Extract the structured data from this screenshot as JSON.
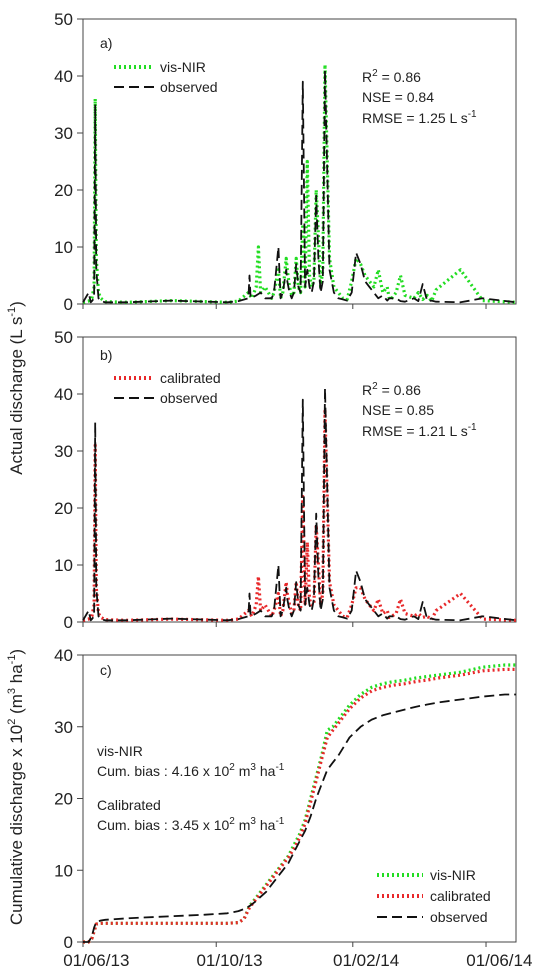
{
  "y_label_top": "Actual discharge (L s-1)",
  "y_label_top_parts": {
    "main": "Actual discharge (L s",
    "sup": "-1",
    "end": ")"
  },
  "y_label_bottom_parts": {
    "main": "Cumulative discharge x 10",
    "sup1": "2",
    "mid": " (m",
    "sup2": "3",
    "mid2": " ha",
    "sup3": "-1",
    "end": ")"
  },
  "x_tick_labels": [
    "01/06/13",
    "01/10/13",
    "01/02/14",
    "01/06/14"
  ],
  "colors": {
    "vis_nir": "#22dd22",
    "calibrated": "#e8282a",
    "observed": "#111111"
  },
  "chart_data": [
    {
      "type": "line",
      "panel_label": "a)",
      "ylim": [
        0,
        50
      ],
      "yticks": [
        0,
        10,
        20,
        30,
        40,
        50
      ],
      "xlim": [
        0,
        390
      ],
      "legend": [
        "vis-NIR",
        "observed"
      ],
      "stats": {
        "r2": "R",
        "r2_sup": "2",
        "r2_val": " = 0.86",
        "nse": "NSE = 0.84",
        "rmse": "RMSE = 1.25 L s",
        "rmse_sup": "-1"
      },
      "series": [
        {
          "name": "vis-NIR",
          "x": [
            0,
            5,
            8,
            10,
            11,
            12,
            14,
            16,
            20,
            40,
            80,
            130,
            140,
            149,
            152,
            156,
            158,
            160,
            164,
            170,
            172,
            176,
            178,
            180,
            183,
            184,
            186,
            188,
            190,
            192,
            194,
            196,
            198,
            200,
            202,
            204,
            206,
            208,
            210,
            212,
            214,
            216,
            218,
            222,
            226,
            230,
            234,
            238,
            242,
            246,
            250,
            254,
            258,
            262,
            266,
            270,
            274,
            276,
            278,
            282,
            286,
            290,
            298,
            302,
            306,
            310,
            314,
            318,
            340,
            360,
            390
          ],
          "y": [
            0.3,
            0.5,
            1,
            3,
            36,
            8,
            2,
            1,
            0.4,
            0.3,
            0.6,
            0.3,
            0.5,
            2,
            1,
            3,
            10,
            2,
            3,
            1,
            2,
            6,
            1,
            2,
            8,
            6,
            3,
            1.5,
            2,
            8,
            3,
            2,
            14,
            3,
            25,
            5,
            3,
            4,
            20,
            12,
            3,
            6,
            42,
            8,
            3,
            2,
            1,
            0.8,
            4,
            8,
            7,
            5,
            4,
            3,
            6,
            2,
            3,
            0.8,
            1,
            2,
            5,
            1.5,
            1,
            2,
            0.8,
            1.5,
            0.5,
            2.5,
            6,
            0.6,
            0.3
          ]
        },
        {
          "name": "observed",
          "x": [
            0,
            5,
            7,
            8,
            10,
            11,
            12,
            14,
            16,
            20,
            40,
            80,
            130,
            140,
            149,
            150,
            151,
            156,
            160,
            164,
            170,
            172,
            176,
            178,
            180,
            183,
            184,
            186,
            188,
            190,
            192,
            194,
            196,
            198,
            200,
            202,
            204,
            206,
            208,
            210,
            212,
            214,
            216,
            218,
            222,
            226,
            230,
            234,
            238,
            242,
            246,
            250,
            254,
            258,
            262,
            266,
            270,
            274,
            276,
            278,
            282,
            286,
            290,
            298,
            302,
            306,
            310,
            314,
            318,
            340,
            360,
            390
          ],
          "y": [
            0.3,
            2,
            0.3,
            0.5,
            1,
            35,
            6,
            1,
            0.5,
            0.3,
            0.3,
            0.6,
            0.3,
            0.5,
            1,
            5,
            1,
            1.5,
            2,
            1,
            1,
            2,
            10,
            1,
            2,
            6,
            4,
            2,
            1,
            2,
            7,
            3,
            2,
            39,
            3,
            6,
            3,
            2,
            4,
            19,
            8,
            2,
            4,
            41,
            6,
            2,
            1,
            0.8,
            0.6,
            2,
            9,
            7,
            4,
            3,
            2,
            1,
            1.5,
            0.6,
            1,
            1,
            1,
            0.5,
            0.4,
            1,
            0.5,
            3.5,
            0.5,
            0.6,
            0.4,
            0.3,
            1,
            0.3
          ]
        }
      ]
    },
    {
      "type": "line",
      "panel_label": "b)",
      "ylim": [
        0,
        50
      ],
      "yticks": [
        0,
        10,
        20,
        30,
        40,
        50
      ],
      "xlim": [
        0,
        390
      ],
      "legend": [
        "calibrated",
        "observed"
      ],
      "stats": {
        "r2": "R",
        "r2_sup": "2",
        "r2_val": " = 0.86",
        "nse": "NSE = 0.85",
        "rmse": "RMSE = 1.21 L s",
        "rmse_sup": "-1"
      },
      "series": [
        {
          "name": "calibrated",
          "x": [
            0,
            5,
            8,
            10,
            11,
            12,
            14,
            16,
            20,
            40,
            80,
            130,
            140,
            149,
            152,
            156,
            158,
            160,
            164,
            170,
            172,
            176,
            178,
            180,
            183,
            184,
            186,
            188,
            190,
            192,
            194,
            196,
            198,
            200,
            202,
            204,
            206,
            208,
            210,
            212,
            214,
            216,
            218,
            222,
            226,
            230,
            234,
            238,
            242,
            246,
            250,
            254,
            258,
            262,
            266,
            270,
            274,
            276,
            278,
            282,
            286,
            290,
            298,
            302,
            306,
            310,
            314,
            318,
            340,
            360,
            390
          ],
          "y": [
            0.3,
            0.5,
            1,
            3,
            31,
            6,
            1.5,
            0.8,
            0.4,
            0.3,
            0.5,
            0.3,
            0.5,
            2,
            1,
            3,
            8,
            2,
            3,
            1,
            2,
            5,
            1,
            2,
            7,
            5,
            3,
            1.5,
            2,
            7,
            3,
            2,
            22,
            3,
            14,
            4,
            3,
            3,
            17,
            10,
            3,
            5,
            37,
            7,
            3,
            2,
            1,
            0.8,
            3,
            6,
            6,
            4,
            3,
            2,
            4,
            1.5,
            2,
            0.8,
            1,
            1.5,
            4,
            1.5,
            1,
            1.5,
            0.8,
            1,
            0.4,
            2,
            5,
            0.5,
            0.3
          ]
        },
        {
          "name": "observed",
          "x": [
            0,
            5,
            7,
            8,
            10,
            11,
            12,
            14,
            16,
            20,
            40,
            80,
            130,
            140,
            149,
            150,
            151,
            156,
            160,
            164,
            170,
            172,
            176,
            178,
            180,
            183,
            184,
            186,
            188,
            190,
            192,
            194,
            196,
            198,
            200,
            202,
            204,
            206,
            208,
            210,
            212,
            214,
            216,
            218,
            222,
            226,
            230,
            234,
            238,
            242,
            246,
            250,
            254,
            258,
            262,
            266,
            270,
            274,
            276,
            278,
            282,
            286,
            290,
            298,
            302,
            306,
            310,
            314,
            318,
            340,
            360,
            390
          ],
          "y": [
            0.3,
            2,
            0.3,
            0.5,
            1,
            35,
            6,
            1,
            0.5,
            0.3,
            0.3,
            0.6,
            0.3,
            0.5,
            1,
            5,
            1,
            1.5,
            2,
            1,
            1,
            2,
            10,
            1,
            2,
            6,
            4,
            2,
            1,
            2,
            7,
            3,
            2,
            39,
            3,
            6,
            3,
            2,
            4,
            19,
            8,
            2,
            4,
            41,
            6,
            2,
            1,
            0.8,
            0.6,
            2,
            9,
            7,
            4,
            3,
            2,
            1,
            1.5,
            0.6,
            1,
            1,
            1,
            0.5,
            0.4,
            1,
            0.5,
            3.5,
            0.5,
            0.6,
            0.4,
            0.3,
            1,
            0.3
          ]
        }
      ]
    },
    {
      "type": "line",
      "panel_label": "c)",
      "ylim": [
        0,
        40
      ],
      "yticks": [
        0,
        10,
        20,
        30,
        40
      ],
      "xlim": [
        0,
        390
      ],
      "legend": [
        "vis-NIR",
        "calibrated",
        "observed"
      ],
      "annotations": [
        {
          "title": "vis-NIR",
          "pre": "Cum. bias : 4.16 x 10",
          "sup1": "2",
          "mid": " m",
          "sup2": "3",
          "mid2": " ha",
          "sup3": "-1"
        },
        {
          "title": "Calibrated",
          "pre": "Cum. bias : 3.45 x 10",
          "sup1": "2",
          "mid": " m",
          "sup2": "3",
          "mid2": " ha",
          "sup3": "-1"
        }
      ],
      "series": [
        {
          "name": "vis-NIR",
          "x": [
            0,
            5,
            8,
            10,
            12,
            16,
            20,
            40,
            80,
            110,
            130,
            140,
            145,
            150,
            155,
            160,
            165,
            170,
            175,
            180,
            185,
            190,
            195,
            200,
            205,
            210,
            215,
            220,
            225,
            230,
            240,
            250,
            260,
            270,
            280,
            290,
            300,
            310,
            320,
            340,
            360,
            380,
            390
          ],
          "y": [
            0,
            0,
            0.5,
            1.5,
            2.5,
            2.6,
            2.6,
            2.6,
            2.6,
            2.6,
            2.6,
            2.7,
            3.2,
            5,
            6,
            7,
            8,
            9,
            10,
            11,
            12,
            13.5,
            15,
            17,
            20,
            23,
            26,
            29.5,
            30,
            31,
            33,
            34.5,
            35.5,
            36,
            36.3,
            36.5,
            36.8,
            37,
            37.2,
            37.6,
            38.3,
            38.6,
            38.6
          ]
        },
        {
          "name": "calibrated",
          "x": [
            0,
            5,
            8,
            10,
            12,
            16,
            20,
            40,
            80,
            110,
            130,
            140,
            145,
            150,
            155,
            160,
            165,
            170,
            175,
            180,
            185,
            190,
            195,
            200,
            205,
            210,
            215,
            220,
            225,
            230,
            240,
            250,
            260,
            270,
            280,
            290,
            300,
            310,
            320,
            340,
            360,
            380,
            390
          ],
          "y": [
            0,
            0,
            0.5,
            1.5,
            2.5,
            2.6,
            2.6,
            2.6,
            2.6,
            2.6,
            2.6,
            2.7,
            3.2,
            4.8,
            5.8,
            6.8,
            7.8,
            8.8,
            9.8,
            10.8,
            11.8,
            13,
            14.5,
            16.5,
            19.5,
            22.5,
            25.5,
            28.5,
            29.5,
            30.5,
            32.5,
            34,
            35,
            35.5,
            35.8,
            36,
            36.3,
            36.5,
            36.8,
            37.2,
            37.8,
            38,
            38
          ]
        },
        {
          "name": "observed",
          "x": [
            0,
            5,
            8,
            10,
            12,
            16,
            20,
            40,
            80,
            110,
            130,
            140,
            145,
            150,
            155,
            160,
            165,
            170,
            175,
            180,
            185,
            190,
            195,
            200,
            205,
            210,
            215,
            220,
            225,
            230,
            240,
            250,
            260,
            270,
            280,
            290,
            300,
            310,
            320,
            340,
            360,
            380,
            390
          ],
          "y": [
            0,
            0,
            0.8,
            2,
            2.8,
            3,
            3.1,
            3.3,
            3.6,
            3.8,
            4,
            4.3,
            4.6,
            5,
            5.6,
            6.3,
            7,
            8,
            9,
            10,
            11,
            12.5,
            14,
            15.5,
            17.5,
            20,
            22,
            24,
            25,
            26,
            28.5,
            30,
            31,
            31.6,
            32,
            32.4,
            32.8,
            33.1,
            33.4,
            33.8,
            34.2,
            34.5,
            34.5
          ]
        }
      ]
    }
  ]
}
